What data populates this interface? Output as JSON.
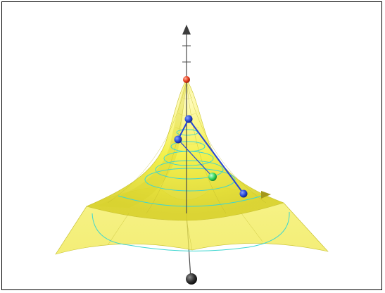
{
  "view": {
    "type": "3d-graphics-view",
    "background": "#ffffff",
    "border": "#000000"
  },
  "surface": {
    "fill": "#f3ef3c",
    "fill_light": "#fbf8a8",
    "fill_dark": "#cfc82a",
    "contour_color": "#3ed6d0",
    "edge_color": "#b9b428"
  },
  "axis": {
    "color": "#4a4a4a",
    "arrow_color": "#3c3c3c",
    "tick_icon": "tick-mark"
  },
  "points": {
    "apex_color": "#e53a1a",
    "vertex_color": "#2446d6",
    "midpoint_color": "#31d65a",
    "bottom_color": "#2e2e2e"
  },
  "segments": {
    "color": "#2446d6"
  }
}
